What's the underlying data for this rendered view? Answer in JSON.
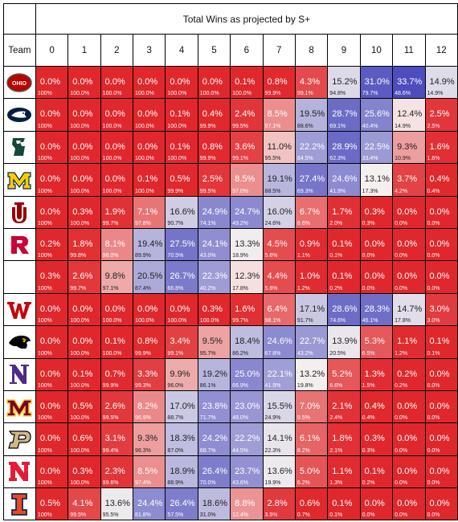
{
  "title": "Total Wins as projected by S+",
  "team_header": "Team",
  "colors": {
    "low": "#e0282c",
    "mid": "#f6f2f0",
    "high": "#4d4dbd"
  },
  "chart_data": {
    "type": "heatmap",
    "title": "Total Wins as projected by S+",
    "x": [
      "0",
      "1",
      "2",
      "3",
      "4",
      "5",
      "6",
      "7",
      "8",
      "9",
      "10",
      "11",
      "12"
    ],
    "value_format": "probability of exactly N wins (large) and probability of at least N wins (small)",
    "rows": [
      {
        "logo": "ohio-state-logo",
        "color": "#bb0000",
        "values": [
          "0.0%",
          "0.0%",
          "0.0%",
          "0.0%",
          "0.0%",
          "0.0%",
          "0.1%",
          "0.8%",
          "4.3%",
          "15.2%",
          "31.0%",
          "33.7%",
          "14.9%"
        ],
        "cumulative": [
          "100%",
          "100.0%",
          "100.0%",
          "100.0%",
          "100.0%",
          "100.0%",
          "100.0%",
          "99.9%",
          "99.1%",
          "94.8%",
          "79.7%",
          "48.6%",
          "14.9%"
        ]
      },
      {
        "logo": "penn-state-logo",
        "color": "#041e42",
        "values": [
          "0.0%",
          "0.0%",
          "0.0%",
          "0.0%",
          "0.1%",
          "0.4%",
          "2.4%",
          "8.5%",
          "19.5%",
          "28.7%",
          "25.6%",
          "12.4%",
          "2.5%"
        ],
        "cumulative": [
          "100%",
          "100.0%",
          "100.0%",
          "100.0%",
          "100.0%",
          "99.9%",
          "99.5%",
          "97.1%",
          "88.6%",
          "69.1%",
          "40.4%",
          "14.9%",
          "2.5%"
        ]
      },
      {
        "logo": "michigan-state-logo",
        "color": "#18453b",
        "values": [
          "0.0%",
          "0.0%",
          "0.0%",
          "0.0%",
          "0.1%",
          "0.8%",
          "3.6%",
          "11.0%",
          "22.2%",
          "28.9%",
          "22.5%",
          "9.3%",
          "1.6%"
        ],
        "cumulative": [
          "100%",
          "100.0%",
          "100.0%",
          "100.0%",
          "100.0%",
          "99.9%",
          "99.1%",
          "95.5%",
          "84.5%",
          "62.3%",
          "33.4%",
          "10.9%",
          "1.6%"
        ]
      },
      {
        "logo": "michigan-logo",
        "color": "#ffcb05",
        "values": [
          "0.0%",
          "0.0%",
          "0.0%",
          "0.1%",
          "0.5%",
          "2.5%",
          "8.5%",
          "19.1%",
          "27.4%",
          "24.6%",
          "13.1%",
          "3.7%",
          "0.4%"
        ],
        "cumulative": [
          "100%",
          "100.0%",
          "100.0%",
          "100.0%",
          "99.9%",
          "99.5%",
          "97.0%",
          "88.5%",
          "69.3%",
          "41.9%",
          "17.3%",
          "4.2%",
          "0.4%"
        ]
      },
      {
        "logo": "indiana-logo",
        "color": "#990000",
        "values": [
          "0.0%",
          "0.3%",
          "1.9%",
          "7.1%",
          "16.6%",
          "24.9%",
          "24.7%",
          "16.0%",
          "6.7%",
          "1.7%",
          "0.3%",
          "0.0%",
          "0.0%"
        ],
        "cumulative": [
          "100%",
          "100.0%",
          "99.7%",
          "97.8%",
          "90.7%",
          "74.1%",
          "49.2%",
          "24.6%",
          "8.6%",
          "2.0%",
          "0.3%",
          "0.0%",
          "0.0%"
        ]
      },
      {
        "logo": "rutgers-logo",
        "color": "#cc0033",
        "values": [
          "0.2%",
          "1.8%",
          "8.1%",
          "19.4%",
          "27.5%",
          "24.1%",
          "13.3%",
          "4.5%",
          "0.9%",
          "0.1%",
          "0.0%",
          "0.0%",
          "0.0%"
        ],
        "cumulative": [
          "100%",
          "99.8%",
          "98.0%",
          "89.9%",
          "70.5%",
          "43.0%",
          "18.9%",
          "5.6%",
          "1.1%",
          "0.1%",
          "0.0%",
          "0.0%",
          "0.0%"
        ]
      },
      {
        "logo": "",
        "values": [
          "0.3%",
          "2.6%",
          "9.8%",
          "20.5%",
          "26.7%",
          "22.3%",
          "12.3%",
          "4.4%",
          "1.0%",
          "0.1%",
          "0.0%",
          "0.0%",
          "0.0%"
        ],
        "cumulative": [
          "100%",
          "99.7%",
          "97.1%",
          "87.4%",
          "66.8%",
          "40.2%",
          "17.8%",
          "5.6%",
          "1.2%",
          "0.2%",
          "0.0%",
          "0.0%",
          "0.0%"
        ]
      },
      {
        "logo": "wisconsin-logo",
        "color": "#c5050c",
        "values": [
          "0.0%",
          "0.0%",
          "0.0%",
          "0.0%",
          "0.0%",
          "0.3%",
          "1.6%",
          "6.4%",
          "17.1%",
          "28.6%",
          "28.3%",
          "14.7%",
          "3.0%"
        ],
        "cumulative": [
          "100%",
          "100.0%",
          "100.0%",
          "100.0%",
          "100.0%",
          "100.0%",
          "99.7%",
          "98.1%",
          "91.7%",
          "74.6%",
          "46.1%",
          "17.8%",
          "3.0%"
        ]
      },
      {
        "logo": "iowa-logo",
        "color": "#000000",
        "values": [
          "0.0%",
          "0.0%",
          "0.1%",
          "0.8%",
          "3.4%",
          "9.5%",
          "18.4%",
          "24.6%",
          "22.7%",
          "13.9%",
          "5.3%",
          "1.1%",
          "0.1%"
        ],
        "cumulative": [
          "100%",
          "100.0%",
          "100.0%",
          "99.9%",
          "99.1%",
          "95.7%",
          "86.2%",
          "67.8%",
          "43.2%",
          "20.5%",
          "6.5%",
          "1.2%",
          "0.1%"
        ]
      },
      {
        "logo": "northwestern-logo",
        "color": "#4e2a84",
        "values": [
          "0.0%",
          "0.1%",
          "0.7%",
          "3.3%",
          "9.9%",
          "19.2%",
          "25.0%",
          "22.1%",
          "13.2%",
          "5.2%",
          "1.3%",
          "0.2%",
          "0.0%"
        ],
        "cumulative": [
          "100%",
          "100.0%",
          "99.9%",
          "99.3%",
          "96.0%",
          "86.1%",
          "66.9%",
          "41.9%",
          "19.8%",
          "6.6%",
          "1.5%",
          "0.2%",
          "0.0%"
        ]
      },
      {
        "logo": "minnesota-logo",
        "color": "#7a0019",
        "values": [
          "0.0%",
          "0.5%",
          "2.6%",
          "8.2%",
          "17.0%",
          "23.8%",
          "23.0%",
          "15.5%",
          "7.0%",
          "2.1%",
          "0.4%",
          "0.0%",
          "0.0%"
        ],
        "cumulative": [
          "100%",
          "100.0%",
          "99.5%",
          "96.9%",
          "88.7%",
          "71.7%",
          "48.0%",
          "24.9%",
          "9.5%",
          "2.4%",
          "0.4%",
          "0.0%",
          "0.0%"
        ]
      },
      {
        "logo": "purdue-logo",
        "color": "#ceb888",
        "values": [
          "0.0%",
          "0.6%",
          "3.1%",
          "9.3%",
          "18.3%",
          "24.2%",
          "22.2%",
          "14.1%",
          "6.1%",
          "1.8%",
          "0.3%",
          "0.0%",
          "0.0%"
        ],
        "cumulative": [
          "100%",
          "100.0%",
          "99.4%",
          "96.3%",
          "87.0%",
          "68.7%",
          "44.5%",
          "22.3%",
          "8.2%",
          "2.1%",
          "0.3%",
          "0.0%",
          "0.0%"
        ]
      },
      {
        "logo": "nebraska-logo",
        "color": "#e41c38",
        "values": [
          "0.0%",
          "0.3%",
          "2.3%",
          "8.5%",
          "18.9%",
          "26.4%",
          "23.7%",
          "13.6%",
          "5.0%",
          "1.1%",
          "0.1%",
          "0.0%",
          "0.0%"
        ],
        "cumulative": [
          "100%",
          "100.0%",
          "99.6%",
          "97.4%",
          "88.9%",
          "70.0%",
          "43.6%",
          "19.9%",
          "6.2%",
          "1.3%",
          "0.2%",
          "0.0%",
          "0.0%"
        ]
      },
      {
        "logo": "illinois-logo",
        "color": "#e84a27",
        "values": [
          "0.5%",
          "4.1%",
          "13.6%",
          "24.4%",
          "26.4%",
          "18.6%",
          "8.8%",
          "2.8%",
          "0.6%",
          "0.1%",
          "0.0%",
          "0.0%",
          "0.0%"
        ],
        "cumulative": [
          "100%",
          "99.5%",
          "95.5%",
          "81.8%",
          "57.5%",
          "31.0%",
          "12.4%",
          "3.5%",
          "0.7%",
          "0.1%",
          "0.0%",
          "0.0%",
          "0.0%"
        ]
      }
    ]
  }
}
